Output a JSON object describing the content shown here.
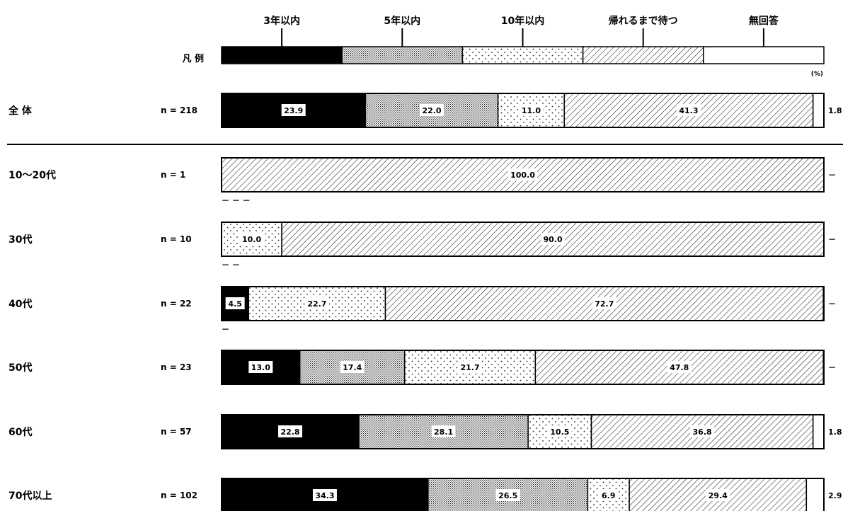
{
  "chart_data": {
    "type": "bar",
    "orientation": "horizontal",
    "stacked": true,
    "unit": "(%)",
    "legend_label": "凡 例",
    "series": [
      {
        "name": "3年以内",
        "pattern": "solid-black"
      },
      {
        "name": "5年以内",
        "pattern": "dense-dots"
      },
      {
        "name": "10年以内",
        "pattern": "sparse-dots"
      },
      {
        "name": "帰れるまで待つ",
        "pattern": "diagonal-hatch"
      },
      {
        "name": "無回答",
        "pattern": "white"
      }
    ],
    "rows": [
      {
        "label": "全 体",
        "n": "n = 218",
        "values": [
          23.9,
          22.0,
          11.0,
          41.3,
          1.8
        ],
        "labels": [
          "23.9",
          "22.0",
          "11.0",
          "41.3",
          "1.8"
        ],
        "dashes": ""
      },
      {
        "label": "10～20代",
        "n": "n = 1",
        "values": [
          0,
          0,
          0,
          100.0,
          0
        ],
        "labels": [
          "",
          "",
          "",
          "100.0",
          "－"
        ],
        "dashes": "－ － －"
      },
      {
        "label": "30代",
        "n": "n = 10",
        "values": [
          0,
          0,
          10.0,
          90.0,
          0
        ],
        "labels": [
          "",
          "",
          "10.0",
          "90.0",
          "－"
        ],
        "dashes": "－ －"
      },
      {
        "label": "40代",
        "n": "n = 22",
        "values": [
          4.5,
          0,
          22.7,
          72.7,
          0
        ],
        "labels": [
          "4.5",
          "",
          "22.7",
          "72.7",
          "－"
        ],
        "dashes": "－"
      },
      {
        "label": "50代",
        "n": "n = 23",
        "values": [
          13.0,
          17.4,
          21.7,
          47.8,
          0
        ],
        "labels": [
          "13.0",
          "17.4",
          "21.7",
          "47.8",
          "－"
        ],
        "dashes": ""
      },
      {
        "label": "60代",
        "n": "n = 57",
        "values": [
          22.8,
          28.1,
          10.5,
          36.8,
          1.8
        ],
        "labels": [
          "22.8",
          "28.1",
          "10.5",
          "36.8",
          "1.8"
        ],
        "dashes": ""
      },
      {
        "label": "70代以上",
        "n": "n = 102",
        "values": [
          34.3,
          26.5,
          6.9,
          29.4,
          2.9
        ],
        "labels": [
          "34.3",
          "26.5",
          "6.9",
          "29.4",
          "2.9"
        ],
        "dashes": ""
      }
    ],
    "colors": {
      "ink": "#000000",
      "paper": "#ffffff"
    }
  }
}
